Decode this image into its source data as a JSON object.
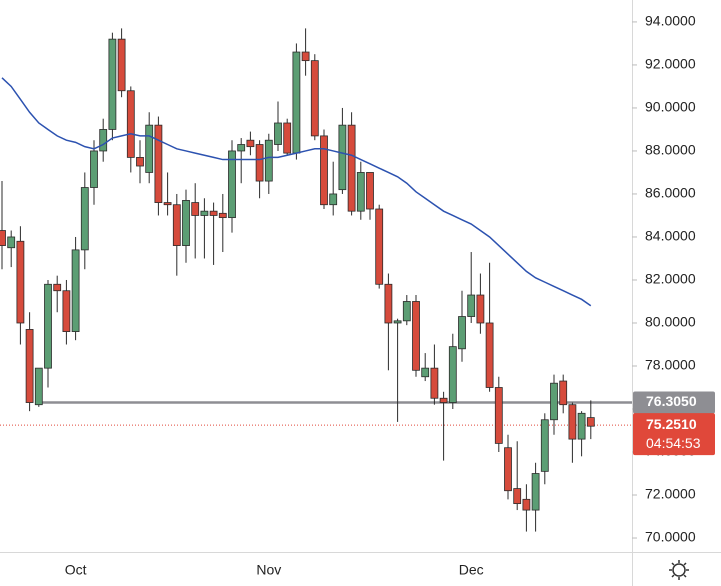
{
  "chart_data": {
    "type": "candlestick",
    "up_color": "#5c9e74",
    "down_color": "#d64b3c",
    "outline_color": "#2b2b2b",
    "categories": [
      null,
      null,
      null,
      null,
      null,
      null,
      null,
      null,
      "Oct",
      null,
      null,
      null,
      null,
      null,
      null,
      null,
      null,
      null,
      null,
      null,
      null,
      null,
      null,
      null,
      null,
      null,
      null,
      null,
      null,
      "Nov",
      null,
      null,
      null,
      null,
      null,
      null,
      null,
      null,
      null,
      null,
      null,
      null,
      null,
      null,
      null,
      null,
      null,
      null,
      null,
      null,
      null,
      "Dec",
      null,
      null,
      null,
      null,
      null,
      null,
      null,
      null,
      null,
      null,
      null,
      null,
      null
    ],
    "open": [
      84.3,
      83.5,
      83.8,
      79.7,
      76.2,
      77.9,
      81.8,
      81.5,
      79.6,
      83.4,
      86.3,
      88.0,
      89.0,
      93.2,
      90.8,
      87.7,
      87.0,
      89.2,
      85.6,
      85.5,
      83.6,
      85.6,
      85.0,
      85.2,
      85.1,
      84.9,
      88.0,
      88.5,
      88.3,
      86.6,
      88.3,
      89.3,
      87.9,
      92.6,
      92.2,
      88.7,
      85.5,
      86.2,
      89.2,
      85.2,
      87.0,
      85.3,
      81.8,
      80.0,
      80.1,
      81.0,
      77.5,
      77.9,
      76.5,
      76.3,
      78.8,
      80.3,
      81.3,
      80.0,
      77.0,
      74.2,
      72.3,
      71.8,
      71.3,
      73.1,
      75.5,
      77.3,
      76.2,
      74.6,
      75.6
    ],
    "high": [
      86.6,
      84.3,
      84.5,
      80.5,
      77.9,
      82.0,
      82.2,
      82.0,
      84.0,
      87.0,
      88.5,
      89.5,
      93.5,
      93.7,
      91.0,
      88.5,
      89.8,
      89.6,
      87.0,
      86.0,
      86.2,
      86.5,
      85.8,
      85.6,
      86.0,
      88.5,
      88.6,
      88.9,
      88.5,
      88.8,
      90.3,
      89.5,
      93.0,
      93.7,
      92.5,
      89.0,
      87.5,
      90.0,
      89.8,
      87.5,
      87.0,
      85.5,
      82.3,
      80.2,
      81.3,
      81.3,
      78.6,
      79.0,
      76.8,
      79.5,
      81.5,
      83.3,
      82.3,
      82.8,
      77.5,
      74.8,
      74.5,
      72.5,
      73.5,
      75.8,
      77.6,
      77.6,
      76.3,
      75.9,
      76.4
    ],
    "low": [
      82.5,
      82.6,
      79.0,
      75.9,
      76.1,
      77.0,
      80.5,
      79.0,
      79.2,
      82.5,
      85.5,
      87.5,
      88.5,
      90.5,
      87.0,
      86.5,
      86.5,
      85.0,
      85.0,
      82.2,
      82.8,
      83.0,
      83.0,
      82.7,
      83.3,
      84.2,
      86.5,
      87.8,
      85.8,
      86.0,
      88.0,
      87.8,
      87.6,
      91.5,
      88.5,
      85.3,
      85.0,
      86.0,
      85.0,
      84.8,
      84.8,
      81.6,
      77.8,
      75.4,
      79.9,
      77.5,
      77.3,
      76.2,
      73.6,
      76.0,
      78.2,
      80.0,
      79.5,
      76.8,
      74.0,
      71.8,
      71.3,
      70.3,
      70.3,
      72.5,
      74.8,
      75.8,
      73.5,
      73.8,
      74.6
    ],
    "close": [
      83.6,
      84.0,
      80.0,
      76.3,
      77.9,
      81.8,
      81.5,
      79.6,
      83.4,
      86.3,
      88.0,
      89.0,
      93.2,
      90.8,
      87.7,
      87.3,
      89.2,
      85.6,
      85.5,
      83.6,
      85.7,
      85.0,
      85.2,
      85.0,
      84.9,
      88.0,
      88.3,
      88.2,
      86.6,
      88.5,
      89.3,
      87.9,
      92.6,
      92.2,
      88.7,
      85.5,
      86.0,
      89.2,
      85.2,
      87.0,
      85.3,
      81.8,
      80.0,
      80.1,
      81.0,
      77.8,
      77.9,
      76.5,
      76.3,
      78.9,
      80.3,
      81.3,
      80.0,
      77.0,
      74.4,
      72.2,
      71.6,
      71.3,
      73.0,
      75.5,
      77.2,
      76.2,
      74.6,
      75.8,
      75.2
    ],
    "ma": {
      "color": "#2c52b0",
      "values": [
        91.4,
        91.0,
        90.4,
        89.8,
        89.3,
        89.0,
        88.7,
        88.5,
        88.4,
        88.2,
        88.1,
        88.3,
        88.6,
        88.7,
        88.8,
        88.7,
        88.7,
        88.5,
        88.3,
        88.1,
        88.0,
        87.9,
        87.8,
        87.7,
        87.6,
        87.6,
        87.6,
        87.6,
        87.6,
        87.7,
        87.7,
        87.8,
        87.9,
        88.0,
        88.1,
        88.1,
        88.0,
        87.9,
        87.8,
        87.6,
        87.4,
        87.2,
        87.0,
        86.8,
        86.5,
        86.1,
        85.8,
        85.5,
        85.2,
        85.0,
        84.8,
        84.6,
        84.3,
        84.0,
        83.6,
        83.2,
        82.8,
        82.4,
        82.1,
        81.9,
        81.7,
        81.5,
        81.3,
        81.1,
        80.8
      ]
    },
    "ylim": [
      69.35,
      95.02
    ],
    "yticks": [
      {
        "value": 70,
        "label": "70.0000"
      },
      {
        "value": 72,
        "label": "72.0000"
      },
      {
        "value": 74,
        "label": "74.0000"
      },
      {
        "value": 76,
        "label": "76.0000"
      },
      {
        "value": 78,
        "label": "78.0000"
      },
      {
        "value": 80,
        "label": "80.0000"
      },
      {
        "value": 82,
        "label": "82.0000"
      },
      {
        "value": 84,
        "label": "84.0000"
      },
      {
        "value": 86,
        "label": "86.0000"
      },
      {
        "value": 88,
        "label": "88.0000"
      },
      {
        "value": 90,
        "label": "90.0000"
      },
      {
        "value": 92,
        "label": "92.0000"
      },
      {
        "value": 94,
        "label": "94.0000"
      }
    ],
    "level": {
      "value": 76.305,
      "label": "76.3050",
      "color": "#8e8e93"
    },
    "last_price": {
      "value": 75.251,
      "label": "75.2510",
      "countdown": "04:54:53",
      "color": "#e0483a"
    }
  }
}
